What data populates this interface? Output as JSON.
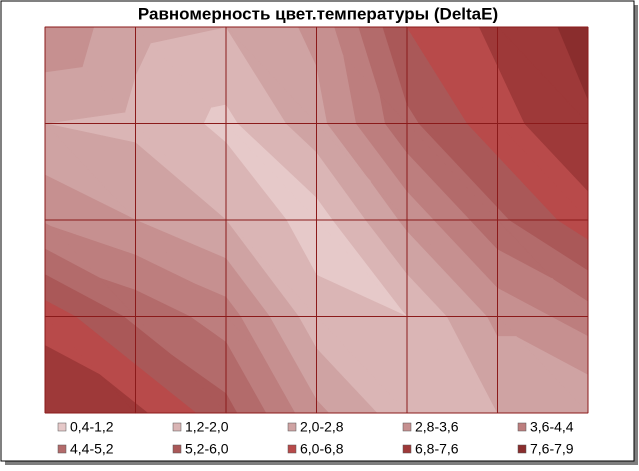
{
  "chart_data": {
    "type": "contour",
    "title": "Равномерность цвет.температуры (DeltaE)",
    "z": [
      [
        3.5,
        2.2,
        2.0,
        3.0,
        6.0,
        7.0,
        7.9
      ],
      [
        2.0,
        1.8,
        1.0,
        2.5,
        5.0,
        6.5,
        7.5
      ],
      [
        3.5,
        2.8,
        2.0,
        0.8,
        3.0,
        5.0,
        6.5
      ],
      [
        6.5,
        5.0,
        4.0,
        1.5,
        1.2,
        3.0,
        4.0
      ],
      [
        7.5,
        7.0,
        5.5,
        3.0,
        1.5,
        2.0,
        2.0
      ]
    ],
    "levels": [
      0.4,
      1.2,
      2.0,
      2.8,
      3.6,
      4.4,
      5.2,
      6.0,
      6.8,
      7.6,
      7.9
    ],
    "series": [
      {
        "name": "0,4-1,2",
        "color": "#e6c9c9"
      },
      {
        "name": "1,2-2,0",
        "color": "#dab5b5"
      },
      {
        "name": "2,0-2,8",
        "color": "#cfa3a3"
      },
      {
        "name": "2,8-3,6",
        "color": "#c69090"
      },
      {
        "name": "3,6-4,4",
        "color": "#bd7e7e"
      },
      {
        "name": "4,4-5,2",
        "color": "#b36b6b"
      },
      {
        "name": "5,2-6,0",
        "color": "#aa5858"
      },
      {
        "name": "6,0-6,8",
        "color": "#b84a4a"
      },
      {
        "name": "6,8-7,6",
        "color": "#9e3939"
      },
      {
        "name": "7,6-7,9",
        "color": "#8a2d2d"
      }
    ],
    "grid": true
  }
}
